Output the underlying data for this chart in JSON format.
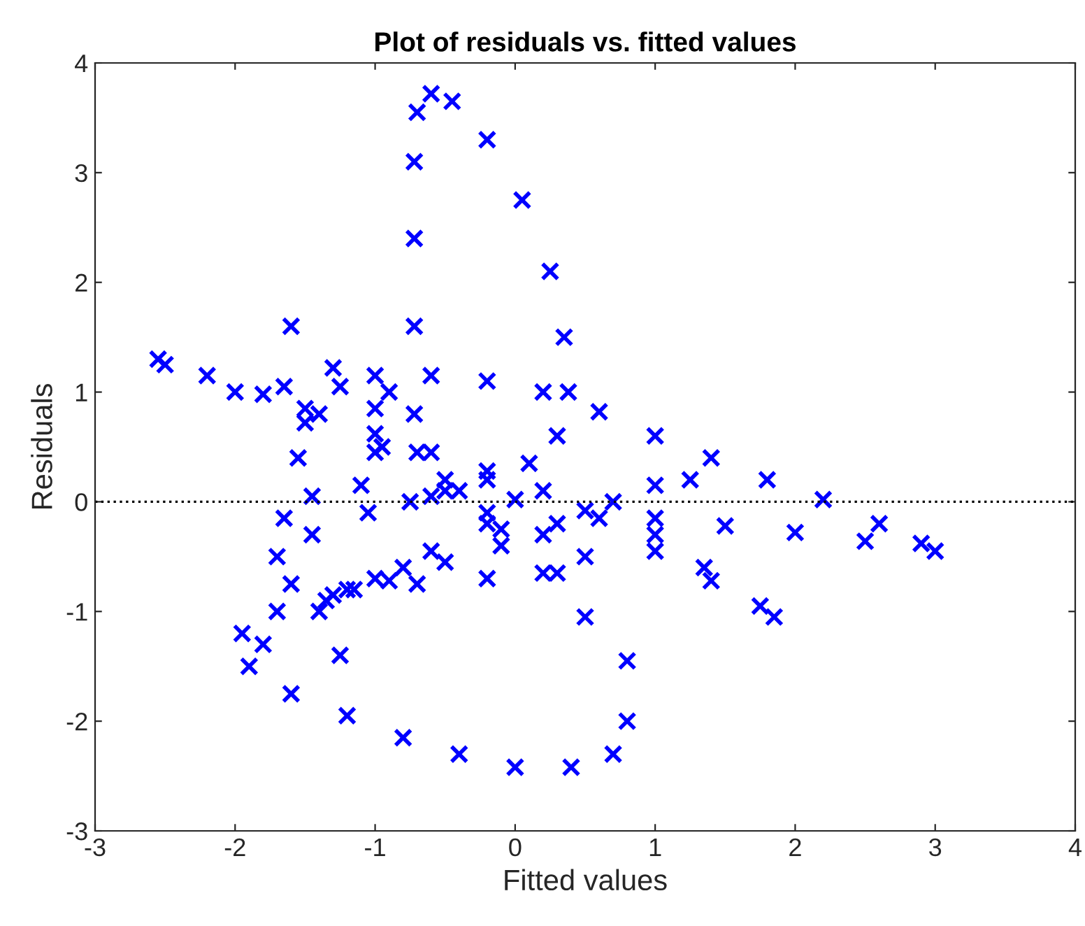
{
  "chart_data": {
    "type": "scatter",
    "title": "Plot of residuals vs. fitted values",
    "xlabel": "Fitted values",
    "ylabel": "Residuals",
    "x": [
      -2.55,
      -2.2,
      -1.8,
      -1.4,
      -1.0,
      -0.6,
      -0.2,
      0.2,
      0.6,
      1.0,
      1.4,
      1.85,
      -2.5,
      -2.0,
      -1.5,
      -1.0,
      -0.5,
      0,
      0.5,
      1.0,
      1.5,
      2.0,
      2.5,
      3.0,
      -1.5,
      -1.25,
      -1.0,
      -0.6,
      -0.2,
      0.2,
      0.6,
      1.0,
      1.4,
      1.8,
      2.2,
      2.6,
      2.9,
      -1.6,
      -1.3,
      -1.0,
      -0.7,
      -0.4,
      -0.1,
      0.2,
      0.5,
      0.8,
      -0.8,
      -0.75,
      -0.72,
      -0.72,
      -0.72,
      -0.72,
      -0.7,
      -0.6,
      -0.45,
      -0.2,
      0.05,
      0.25,
      0.35,
      0.38,
      0.3,
      0.1,
      -0.2,
      -0.5,
      -1.65,
      -1.55,
      -1.45,
      -1.35,
      -1.25,
      -1.15,
      -1.05,
      -0.95,
      -0.9,
      0.8,
      0.7,
      0.4,
      0,
      -0.4,
      -0.8,
      -1.2,
      -1.6,
      -1.9,
      -1.95,
      -1.7,
      -1.3,
      -0.9,
      -0.5,
      -0.1,
      0.3,
      0.7,
      1.0,
      1.25,
      -1.7,
      -1.65,
      -1.45,
      -1.1,
      -0.6,
      -0.2,
      0.2,
      0.5,
      0.3,
      -0.2,
      -0.7,
      -1.2,
      -1.6,
      1.0,
      1.35,
      1.75,
      -1.8,
      -1.4,
      -1.0,
      -0.6,
      -0.2
    ],
    "series": [
      {
        "color": "#0000ff",
        "values": [
          1.3,
          1.15,
          0.98,
          0.8,
          0.62,
          0.45,
          0.28,
          0.1,
          -0.15,
          -0.45,
          -0.72,
          -1.05,
          1.25,
          1.0,
          0.72,
          0.45,
          0.2,
          0.02,
          -0.08,
          -0.15,
          -0.22,
          -0.28,
          -0.36,
          -0.45,
          0.85,
          1.05,
          1.15,
          1.15,
          1.1,
          1.0,
          0.82,
          0.6,
          0.4,
          0.2,
          0.02,
          -0.2,
          -0.38,
          1.6,
          1.22,
          0.85,
          0.45,
          0.1,
          -0.25,
          -0.65,
          -1.05,
          -1.45,
          -0.6,
          0,
          0.8,
          1.6,
          2.4,
          3.1,
          3.55,
          3.72,
          3.65,
          3.3,
          2.75,
          2.1,
          1.5,
          1.0,
          0.6,
          0.35,
          0.2,
          0.1,
          1.05,
          0.4,
          -0.3,
          -0.9,
          -1.4,
          -0.8,
          -0.1,
          0.5,
          1.0,
          -2.0,
          -2.3,
          -2.42,
          -2.42,
          -2.3,
          -2.15,
          -1.95,
          -1.75,
          -1.5,
          -1.2,
          -1.0,
          -0.85,
          -0.72,
          -0.55,
          -0.4,
          -0.2,
          0.0,
          0.15,
          0.2,
          -0.5,
          -0.15,
          0.05,
          0.15,
          0.05,
          -0.1,
          -0.3,
          -0.5,
          -0.65,
          -0.7,
          -0.75,
          -0.8,
          -0.75,
          -0.3,
          -0.6,
          -0.95,
          -1.3,
          -1.0,
          -0.7,
          -0.45,
          -0.2
        ]
      }
    ],
    "marker": "cross",
    "xlim": [
      -3,
      4
    ],
    "ylim": [
      -3,
      4
    ],
    "xticks": [
      -3,
      -2,
      -1,
      0,
      1,
      2,
      3,
      4
    ],
    "yticks": [
      -3,
      -2,
      -1,
      0,
      1,
      2,
      3,
      4
    ],
    "ref_lines": [
      {
        "axis": "y",
        "value": 0,
        "color": "#000000",
        "line_style": "dotted"
      }
    ],
    "grid": false
  }
}
